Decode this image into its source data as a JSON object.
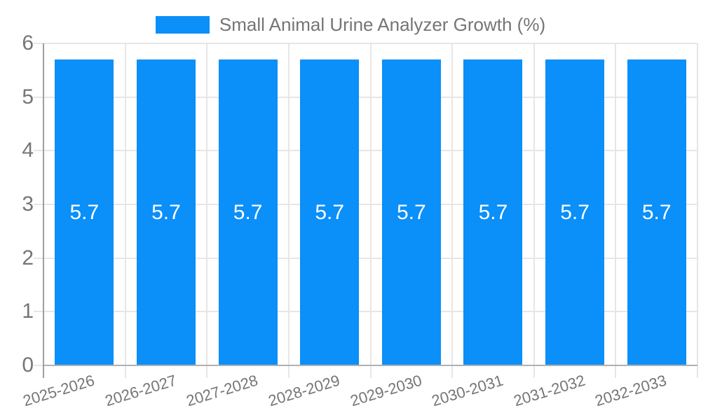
{
  "legend": {
    "position": "top",
    "label": "Small Animal Urine Analyzer Growth (%)"
  },
  "chart_data": {
    "type": "bar",
    "title": "Small Animal Urine Analyzer Growth (%)",
    "categories": [
      "2025-2026",
      "2026-2027",
      "2027-2028",
      "2028-2029",
      "2029-2030",
      "2030-2031",
      "2031-2032",
      "2032-2033"
    ],
    "series": [
      {
        "name": "Small Animal Urine Analyzer Growth (%)",
        "values": [
          5.7,
          5.7,
          5.7,
          5.7,
          5.7,
          5.7,
          5.7,
          5.7
        ]
      }
    ],
    "bar_value_labels": [
      "5.7",
      "5.7",
      "5.7",
      "5.7",
      "5.7",
      "5.7",
      "5.7",
      "5.7"
    ],
    "xlabel": "",
    "ylabel": "",
    "ylim": [
      0,
      6
    ],
    "y_ticks": [
      0,
      1,
      2,
      3,
      4,
      5,
      6
    ],
    "grid": true,
    "legend_position": "top",
    "x_tick_rotation_deg": -17,
    "colors": {
      "bar": "#0b8ff9",
      "bar_label_text": "#ffffff",
      "axis_text": "#757575",
      "grid_line": "#e6e6e6",
      "axis_line": "#9e9e9e",
      "baseline": "#b0b0b0",
      "background": "#ffffff"
    }
  }
}
